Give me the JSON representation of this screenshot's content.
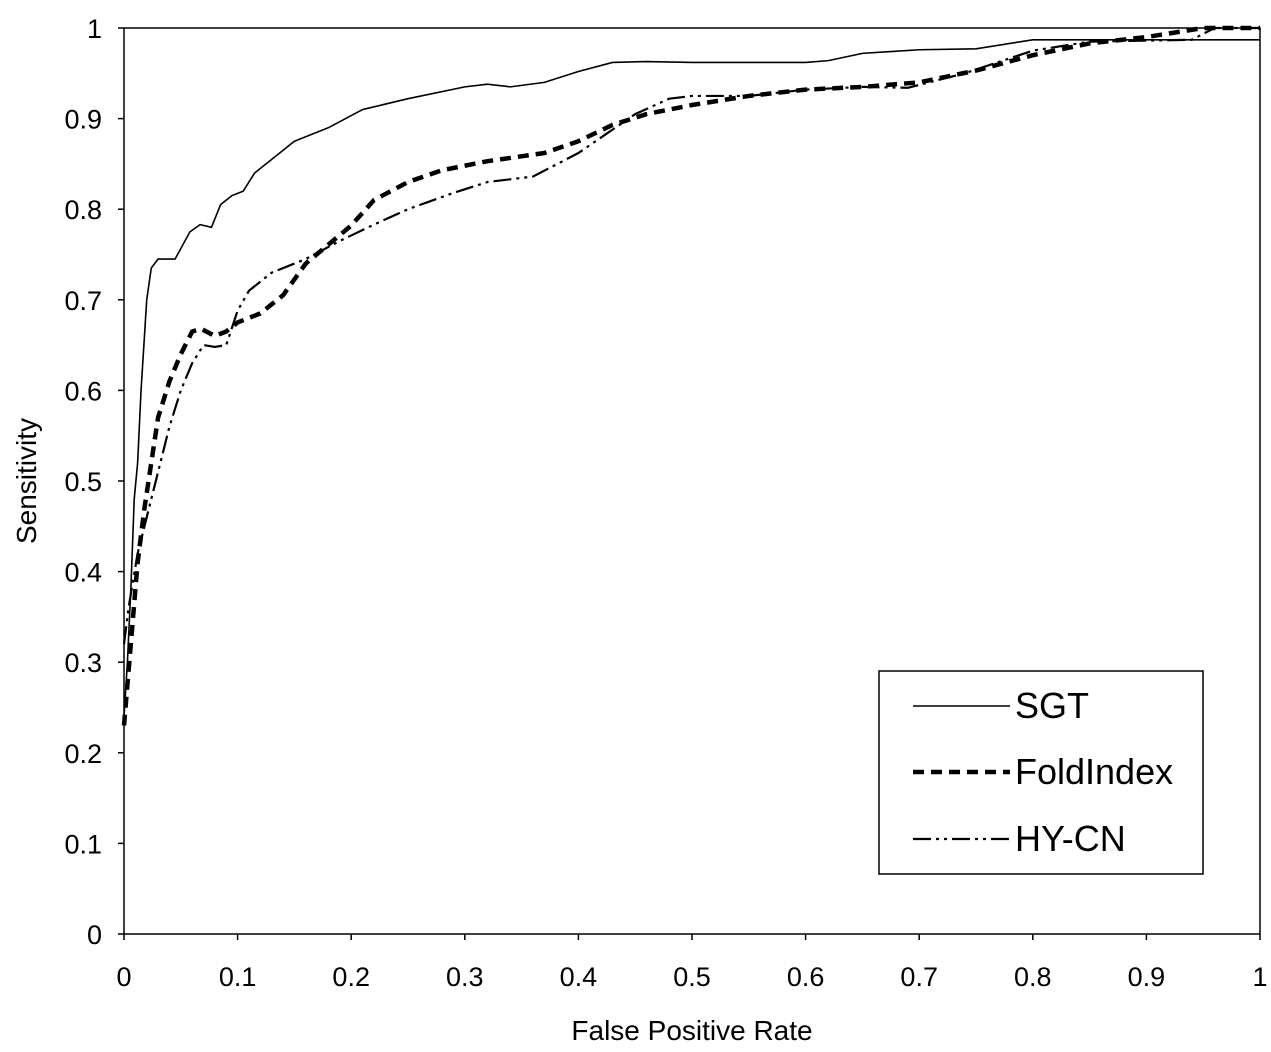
{
  "chart_data": {
    "type": "line",
    "title": "",
    "xlabel": "False Positive Rate",
    "ylabel": "Sensitivity",
    "xlim": [
      0,
      1
    ],
    "ylim": [
      0,
      1
    ],
    "xticks": [
      "0",
      "0.1",
      "0.2",
      "0.3",
      "0.4",
      "0.5",
      "0.6",
      "0.7",
      "0.8",
      "0.9",
      "1"
    ],
    "yticks": [
      "0",
      "0.1",
      "0.2",
      "0.3",
      "0.4",
      "0.5",
      "0.6",
      "0.7",
      "0.8",
      "0.9",
      "1"
    ],
    "grid": false,
    "legend_position": "bottom-right",
    "series": [
      {
        "name": "SGT",
        "style": "solid",
        "color": "#000000",
        "points": [
          [
            0,
            0.24
          ],
          [
            0.003,
            0.3
          ],
          [
            0.006,
            0.38
          ],
          [
            0.009,
            0.48
          ],
          [
            0.012,
            0.52
          ],
          [
            0.015,
            0.6
          ],
          [
            0.018,
            0.66
          ],
          [
            0.02,
            0.7
          ],
          [
            0.024,
            0.735
          ],
          [
            0.03,
            0.745
          ],
          [
            0.045,
            0.745
          ],
          [
            0.058,
            0.775
          ],
          [
            0.067,
            0.783
          ],
          [
            0.077,
            0.78
          ],
          [
            0.085,
            0.805
          ],
          [
            0.095,
            0.815
          ],
          [
            0.105,
            0.82
          ],
          [
            0.115,
            0.84
          ],
          [
            0.13,
            0.855
          ],
          [
            0.15,
            0.875
          ],
          [
            0.18,
            0.89
          ],
          [
            0.21,
            0.91
          ],
          [
            0.25,
            0.922
          ],
          [
            0.3,
            0.935
          ],
          [
            0.32,
            0.938
          ],
          [
            0.34,
            0.935
          ],
          [
            0.37,
            0.94
          ],
          [
            0.4,
            0.952
          ],
          [
            0.43,
            0.962
          ],
          [
            0.46,
            0.963
          ],
          [
            0.5,
            0.962
          ],
          [
            0.6,
            0.962
          ],
          [
            0.62,
            0.964
          ],
          [
            0.65,
            0.972
          ],
          [
            0.7,
            0.976
          ],
          [
            0.75,
            0.977
          ],
          [
            0.8,
            0.987
          ],
          [
            0.9,
            0.987
          ],
          [
            1.0,
            0.987
          ]
        ]
      },
      {
        "name": "FoldIndex",
        "style": "dashed",
        "color": "#000000",
        "points": [
          [
            0,
            0.23
          ],
          [
            0.004,
            0.29
          ],
          [
            0.008,
            0.35
          ],
          [
            0.012,
            0.41
          ],
          [
            0.018,
            0.47
          ],
          [
            0.024,
            0.52
          ],
          [
            0.03,
            0.57
          ],
          [
            0.04,
            0.61
          ],
          [
            0.05,
            0.64
          ],
          [
            0.06,
            0.665
          ],
          [
            0.068,
            0.668
          ],
          [
            0.08,
            0.66
          ],
          [
            0.09,
            0.665
          ],
          [
            0.1,
            0.675
          ],
          [
            0.12,
            0.685
          ],
          [
            0.14,
            0.705
          ],
          [
            0.16,
            0.74
          ],
          [
            0.2,
            0.782
          ],
          [
            0.22,
            0.81
          ],
          [
            0.25,
            0.83
          ],
          [
            0.28,
            0.843
          ],
          [
            0.32,
            0.853
          ],
          [
            0.37,
            0.862
          ],
          [
            0.4,
            0.875
          ],
          [
            0.43,
            0.893
          ],
          [
            0.46,
            0.905
          ],
          [
            0.5,
            0.915
          ],
          [
            0.55,
            0.925
          ],
          [
            0.6,
            0.932
          ],
          [
            0.65,
            0.935
          ],
          [
            0.7,
            0.94
          ],
          [
            0.75,
            0.953
          ],
          [
            0.8,
            0.97
          ],
          [
            0.85,
            0.983
          ],
          [
            0.9,
            0.99
          ],
          [
            0.95,
            1.0
          ],
          [
            1.0,
            1.0
          ]
        ]
      },
      {
        "name": "HY-CN",
        "style": "dash-dot-dot",
        "color": "#000000",
        "points": [
          [
            0,
            0.32
          ],
          [
            0.004,
            0.36
          ],
          [
            0.008,
            0.39
          ],
          [
            0.012,
            0.42
          ],
          [
            0.018,
            0.45
          ],
          [
            0.024,
            0.48
          ],
          [
            0.032,
            0.52
          ],
          [
            0.04,
            0.56
          ],
          [
            0.05,
            0.6
          ],
          [
            0.06,
            0.63
          ],
          [
            0.07,
            0.65
          ],
          [
            0.08,
            0.648
          ],
          [
            0.09,
            0.65
          ],
          [
            0.1,
            0.688
          ],
          [
            0.11,
            0.71
          ],
          [
            0.13,
            0.73
          ],
          [
            0.16,
            0.745
          ],
          [
            0.19,
            0.765
          ],
          [
            0.22,
            0.783
          ],
          [
            0.25,
            0.8
          ],
          [
            0.29,
            0.818
          ],
          [
            0.32,
            0.83
          ],
          [
            0.36,
            0.836
          ],
          [
            0.4,
            0.862
          ],
          [
            0.45,
            0.905
          ],
          [
            0.48,
            0.922
          ],
          [
            0.5,
            0.925
          ],
          [
            0.55,
            0.925
          ],
          [
            0.6,
            0.932
          ],
          [
            0.65,
            0.935
          ],
          [
            0.69,
            0.934
          ],
          [
            0.74,
            0.95
          ],
          [
            0.8,
            0.975
          ],
          [
            0.85,
            0.985
          ],
          [
            0.94,
            0.987
          ],
          [
            0.96,
            1.0
          ],
          [
            1.0,
            1.0
          ]
        ]
      }
    ]
  }
}
